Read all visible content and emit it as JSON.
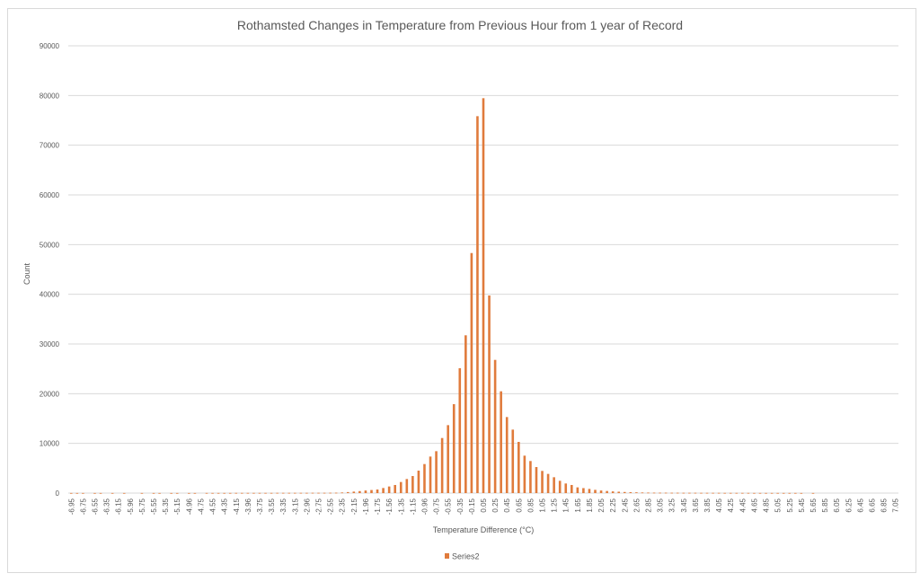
{
  "chart_data": {
    "type": "bar",
    "title": "Rothamsted Changes in Temperature from Previous Hour from 1 year of Record",
    "xlabel": "Temperature Difference (°C)",
    "ylabel": "Count",
    "ylim": [
      0,
      90000
    ],
    "y_ticks": [
      "0",
      "10000",
      "20000",
      "30000",
      "40000",
      "50000",
      "60000",
      "70000",
      "80000",
      "90000"
    ],
    "x_start": -6.95,
    "x_step": 0.1,
    "tick_labels": [
      "-6.95",
      "-6.75",
      "-6.55",
      "-6.35",
      "-6.15",
      "-5.96",
      "-5.75",
      "-5.55",
      "-5.35",
      "-5.15",
      "-4.96",
      "-4.75",
      "-4.55",
      "-4.35",
      "-4.15",
      "-3.96",
      "-3.75",
      "-3.55",
      "-3.35",
      "-3.15",
      "-2.96",
      "-2.75",
      "-2.55",
      "-2.35",
      "-2.15",
      "-1.96",
      "-1.75",
      "-1.56",
      "-1.35",
      "-1.15",
      "-0.96",
      "-0.75",
      "-0.55",
      "-0.35",
      "-0.15",
      "0.05",
      "0.25",
      "0.45",
      "0.65",
      "0.85",
      "1.05",
      "1.25",
      "1.45",
      "1.65",
      "1.85",
      "2.05",
      "2.25",
      "2.45",
      "2.65",
      "2.85",
      "3.05",
      "3.25",
      "3.45",
      "3.65",
      "3.85",
      "4.05",
      "4.25",
      "4.45",
      "4.65",
      "4.85",
      "5.05",
      "5.25",
      "5.45",
      "5.65",
      "5.85",
      "6.05",
      "6.25",
      "6.45",
      "6.65",
      "6.85",
      "7.05"
    ],
    "series": [
      {
        "name": "Series2",
        "color": "#e07b3c",
        "values": [
          20,
          20,
          20,
          0,
          20,
          20,
          0,
          20,
          0,
          20,
          0,
          0,
          20,
          0,
          20,
          20,
          0,
          20,
          20,
          0,
          20,
          20,
          0,
          30,
          30,
          30,
          30,
          30,
          40,
          40,
          40,
          40,
          40,
          40,
          40,
          50,
          50,
          50,
          50,
          50,
          50,
          60,
          60,
          60,
          70,
          80,
          120,
          200,
          300,
          400,
          520,
          620,
          720,
          1020,
          1330,
          1630,
          2230,
          2830,
          3430,
          4520,
          5840,
          7350,
          8430,
          11080,
          13670,
          17890,
          25120,
          31750,
          48300,
          75840,
          79460,
          39760,
          26800,
          20480,
          15300,
          12770,
          10300,
          7530,
          6450,
          5240,
          4460,
          3860,
          3190,
          2470,
          1930,
          1630,
          1150,
          1000,
          840,
          650,
          520,
          420,
          340,
          280,
          220,
          180,
          150,
          120,
          100,
          90,
          80,
          80,
          70,
          70,
          60,
          60,
          60,
          50,
          50,
          50,
          50,
          40,
          40,
          40,
          40,
          40,
          30,
          30,
          30,
          30,
          30,
          30,
          30,
          30,
          20,
          0,
          20,
          0,
          0,
          0,
          0,
          0,
          0,
          0,
          0,
          0,
          0,
          0,
          0,
          0,
          0
        ]
      }
    ],
    "grid": true,
    "legend": "bottom"
  }
}
